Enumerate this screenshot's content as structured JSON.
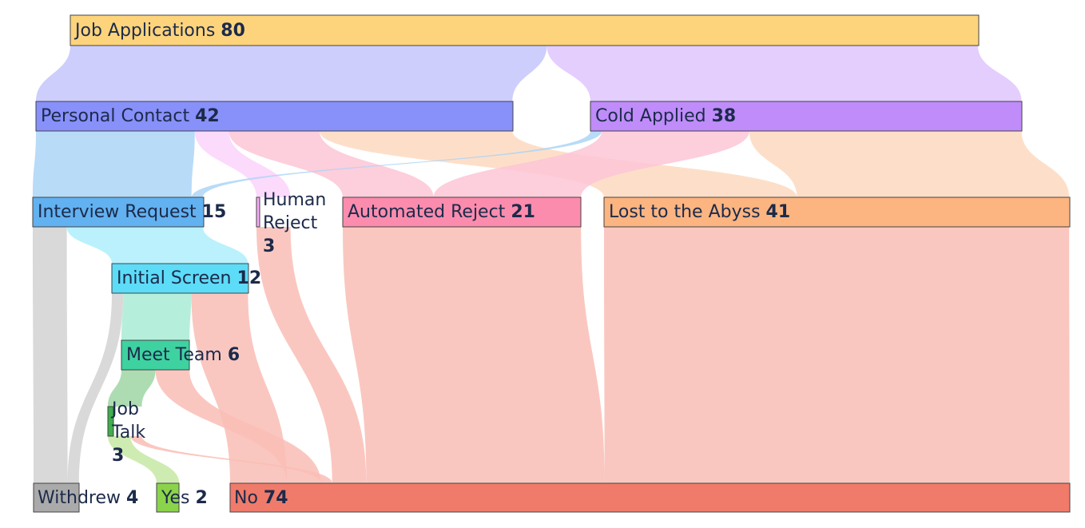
{
  "chart_data": {
    "type": "sankey",
    "nodes": [
      {
        "id": "apps",
        "label": "Job Applications",
        "value": "80",
        "color": "#fdd47c"
      },
      {
        "id": "personal",
        "label": "Personal Contact",
        "value": "42",
        "color": "#8890fa"
      },
      {
        "id": "cold",
        "label": "Cold Applied",
        "value": "38",
        "color": "#bf8cfa"
      },
      {
        "id": "interview",
        "label": "Interview Request",
        "value": "15",
        "color": "#62b1f0"
      },
      {
        "id": "human",
        "label": "Human Reject",
        "value": "3",
        "color": "#f9a8f9"
      },
      {
        "id": "auto",
        "label": "Automated Reject",
        "value": "21",
        "color": "#fb8cad"
      },
      {
        "id": "abyss",
        "label": "Lost to the Abyss",
        "value": "41",
        "color": "#fcb480"
      },
      {
        "id": "screen",
        "label": "Initial Screen",
        "value": "12",
        "color": "#5ddcf8"
      },
      {
        "id": "team",
        "label": "Meet Team",
        "value": "6",
        "color": "#3ed2a1"
      },
      {
        "id": "talk",
        "label": "Job Talk",
        "value": "3",
        "color": "#3fae4c"
      },
      {
        "id": "withdrew",
        "label": "Withdrew",
        "value": "4",
        "color": "#aaaaaa"
      },
      {
        "id": "yes",
        "label": "Yes",
        "value": "2",
        "color": "#8bd34b"
      },
      {
        "id": "no",
        "label": "No",
        "value": "74",
        "color": "#f07b6b"
      }
    ],
    "links": [
      {
        "source": "apps",
        "target": "personal",
        "value": 42,
        "color": "#c5c6fc"
      },
      {
        "source": "apps",
        "target": "cold",
        "value": 38,
        "color": "#dfc5fd"
      },
      {
        "source": "personal",
        "target": "interview",
        "value": 14,
        "color": "#abd5f7"
      },
      {
        "source": "personal",
        "target": "human",
        "value": 3,
        "color": "#fcd3fc"
      },
      {
        "source": "personal",
        "target": "auto",
        "value": 8,
        "color": "#fdc6d6"
      },
      {
        "source": "personal",
        "target": "abyss",
        "value": 17,
        "color": "#fdd9bf"
      },
      {
        "source": "cold",
        "target": "interview",
        "value": 1,
        "color": "#abd5f7"
      },
      {
        "source": "cold",
        "target": "auto",
        "value": 13,
        "color": "#fdc6d6"
      },
      {
        "source": "cold",
        "target": "abyss",
        "value": 24,
        "color": "#fdd9bf"
      },
      {
        "source": "interview",
        "target": "withdrew",
        "value": 3,
        "color": "#d2d2d2"
      },
      {
        "source": "interview",
        "target": "screen",
        "value": 12,
        "color": "#aeeefc"
      },
      {
        "source": "screen",
        "target": "withdrew",
        "value": 1,
        "color": "#d2d2d2"
      },
      {
        "source": "screen",
        "target": "team",
        "value": 6,
        "color": "#a9ebd6"
      },
      {
        "source": "screen",
        "target": "no",
        "value": 5,
        "color": "#f9bdb5"
      },
      {
        "source": "team",
        "target": "talk",
        "value": 3,
        "color": "#9fd6a5"
      },
      {
        "source": "team",
        "target": "no",
        "value": 3,
        "color": "#f9bdb5"
      },
      {
        "source": "talk",
        "target": "yes",
        "value": 2,
        "color": "#c5e9a5"
      },
      {
        "source": "talk",
        "target": "no",
        "value": 1,
        "color": "#f9bdb5"
      },
      {
        "source": "human",
        "target": "no",
        "value": 3,
        "color": "#f9bdb5"
      },
      {
        "source": "auto",
        "target": "no",
        "value": 21,
        "color": "#f9bdb5"
      },
      {
        "source": "abyss",
        "target": "no",
        "value": 41,
        "color": "#f9bdb5"
      }
    ]
  }
}
